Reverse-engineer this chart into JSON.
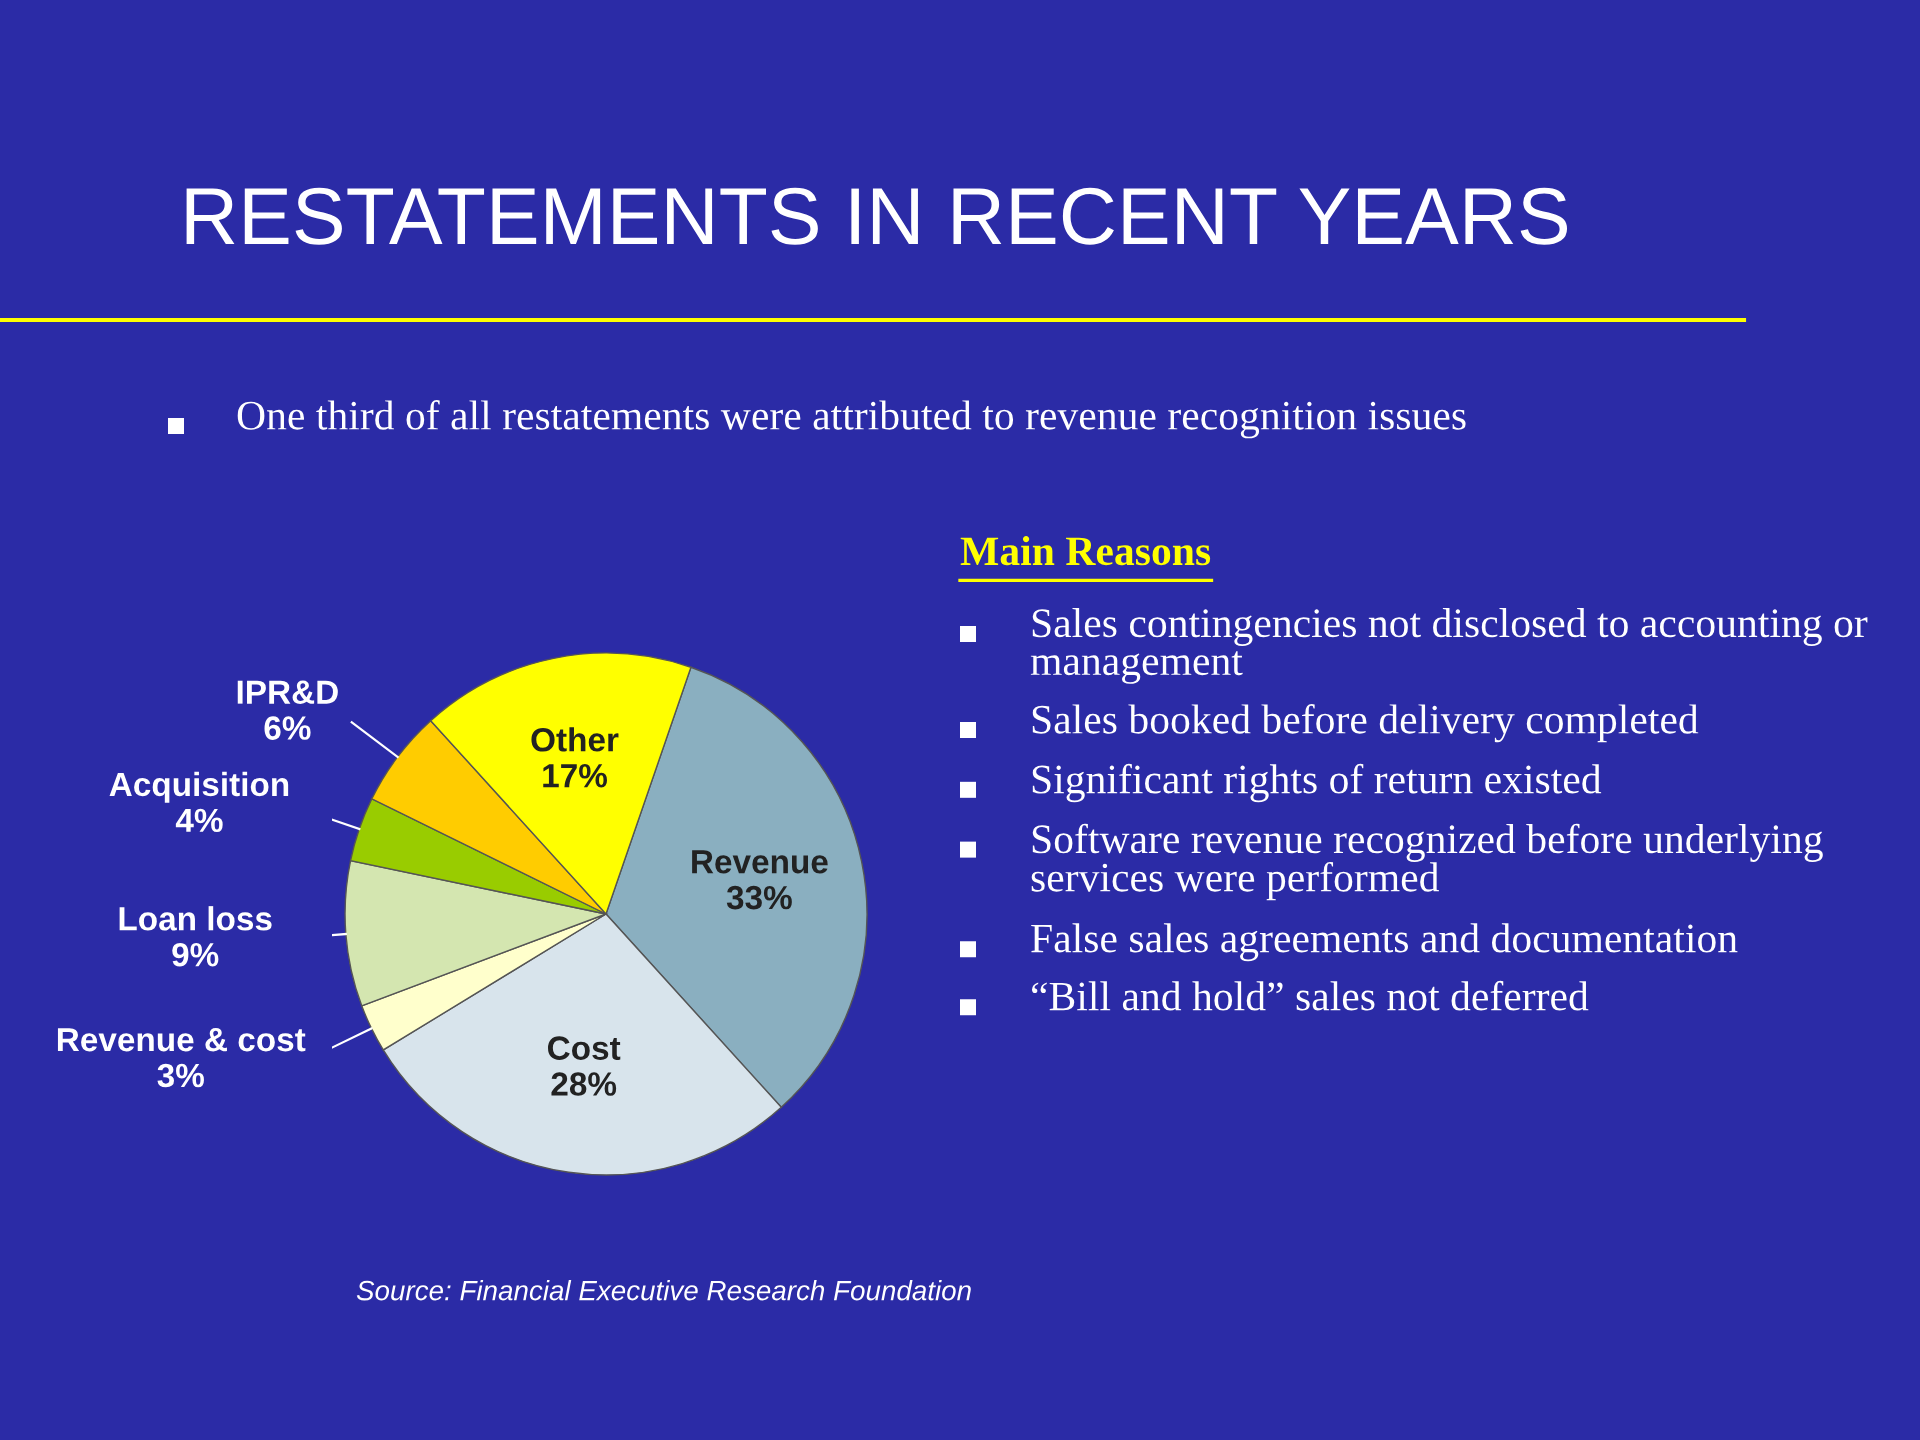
{
  "chart_data": {
    "type": "pie",
    "title": "RESTATEMENTS IN RECENT YEARS",
    "subtitle": "One third of all restatements were attributed to revenue recognition issues",
    "categories": [
      "Revenue",
      "Cost",
      "Revenue & cost",
      "Loan loss",
      "Acquisition",
      "IPR&D",
      "Other"
    ],
    "values": [
      33,
      28,
      3,
      9,
      4,
      6,
      17
    ],
    "colors": [
      "#8aafc0",
      "#d8e4ec",
      "#ffffcc",
      "#d4e6b0",
      "#99cc00",
      "#ffcc00",
      "#ffff00"
    ],
    "value_labels": [
      "33%",
      "28%",
      "3%",
      "9%",
      "4%",
      "6%",
      "17%"
    ],
    "annotations": [
      "Main Reasons",
      "Sales contingencies not disclosed to accounting or management",
      "Sales booked before delivery completed",
      "Significant rights of return existed",
      "Software revenue recognized before underlying services were performed",
      "False sales agreements and documentation",
      "“Bill and hold” sales not deferred",
      "Source: Financial Executive Research Foundation"
    ]
  }
}
